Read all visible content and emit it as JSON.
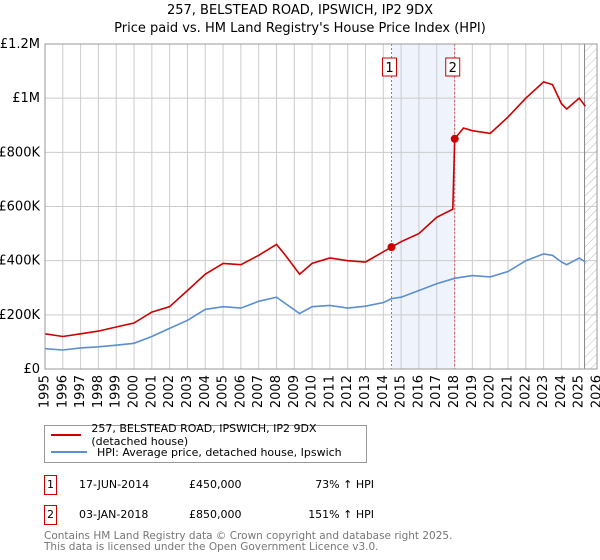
{
  "chart_data": {
    "type": "line",
    "title": "257, BELSTEAD ROAD, IPSWICH, IP2 9DX",
    "subtitle": "Price paid vs. HM Land Registry's House Price Index (HPI)",
    "xlim": [
      1995,
      2026
    ],
    "ylim": [
      0,
      1200000
    ],
    "xticks": [
      "1995",
      "1996",
      "1997",
      "1998",
      "1999",
      "2000",
      "2001",
      "2002",
      "2003",
      "2004",
      "2005",
      "2006",
      "2007",
      "2008",
      "2009",
      "2010",
      "2011",
      "2012",
      "2013",
      "2014",
      "2015",
      "2016",
      "2017",
      "2018",
      "2019",
      "2020",
      "2021",
      "2022",
      "2023",
      "2024",
      "2025",
      "2026"
    ],
    "yticks": [
      {
        "v": 0,
        "label": "£0"
      },
      {
        "v": 200000,
        "label": "£200K"
      },
      {
        "v": 400000,
        "label": "£400K"
      },
      {
        "v": 600000,
        "label": "£600K"
      },
      {
        "v": 800000,
        "label": "£800K"
      },
      {
        "v": 1000000,
        "label": "£1M"
      },
      {
        "v": 1200000,
        "label": "£1.2M"
      }
    ],
    "grid": true,
    "shaded_range": [
      2014.46,
      2018.01
    ],
    "hatched_from": 2025.3,
    "series": [
      {
        "name": "257, BELSTEAD ROAD, IPSWICH, IP2 9DX (detached house)",
        "color": "#cc0000",
        "x": [
          1995,
          1996,
          1997,
          1998,
          1999,
          2000,
          2001,
          2002,
          2003,
          2004,
          2005,
          2006,
          2007,
          2008,
          2008.5,
          2009.3,
          2010,
          2011,
          2012,
          2013,
          2014.46,
          2015,
          2016,
          2017,
          2017.9,
          2018.01,
          2018.5,
          2019,
          2020,
          2021,
          2022,
          2023,
          2023.5,
          2024,
          2024.3,
          2025,
          2025.35
        ],
        "y": [
          130000,
          120000,
          130000,
          140000,
          155000,
          170000,
          210000,
          230000,
          290000,
          350000,
          390000,
          385000,
          420000,
          460000,
          420000,
          350000,
          390000,
          410000,
          400000,
          395000,
          450000,
          470000,
          500000,
          560000,
          590000,
          850000,
          890000,
          880000,
          870000,
          930000,
          1000000,
          1060000,
          1050000,
          980000,
          960000,
          1000000,
          970000
        ]
      },
      {
        "name": "HPI: Average price, detached house, Ipswich",
        "color": "#5b8fd0",
        "x": [
          1995,
          1996,
          1997,
          1998,
          1999,
          2000,
          2001,
          2002,
          2003,
          2004,
          2005,
          2006,
          2007,
          2008,
          2009.3,
          2010,
          2011,
          2012,
          2013,
          2014,
          2014.46,
          2015,
          2016,
          2017,
          2018,
          2019,
          2020,
          2021,
          2022,
          2023,
          2023.5,
          2024,
          2024.3,
          2025,
          2025.35
        ],
        "y": [
          75000,
          70000,
          78000,
          82000,
          88000,
          95000,
          120000,
          150000,
          180000,
          220000,
          230000,
          225000,
          250000,
          265000,
          205000,
          230000,
          235000,
          225000,
          232000,
          245000,
          260000,
          265000,
          290000,
          315000,
          335000,
          345000,
          340000,
          360000,
          400000,
          425000,
          420000,
          395000,
          385000,
          410000,
          395000
        ]
      }
    ],
    "markers": [
      {
        "label": "1",
        "x": 2014.46,
        "y": 450000
      },
      {
        "label": "2",
        "x": 2018.01,
        "y": 850000
      }
    ]
  },
  "legend": {
    "items": [
      "257, BELSTEAD ROAD, IPSWICH, IP2 9DX (detached house)",
      "HPI: Average price, detached house, Ipswich"
    ]
  },
  "sales": [
    {
      "num": "1",
      "date": "17-JUN-2014",
      "price": "£450,000",
      "hpi": "73% ↑ HPI"
    },
    {
      "num": "2",
      "date": "03-JAN-2018",
      "price": "£850,000",
      "hpi": "151% ↑ HPI"
    }
  ],
  "footer": {
    "line1": "Contains HM Land Registry data © Crown copyright and database right 2025.",
    "line2": "This data is licensed under the Open Government Licence v3.0."
  }
}
